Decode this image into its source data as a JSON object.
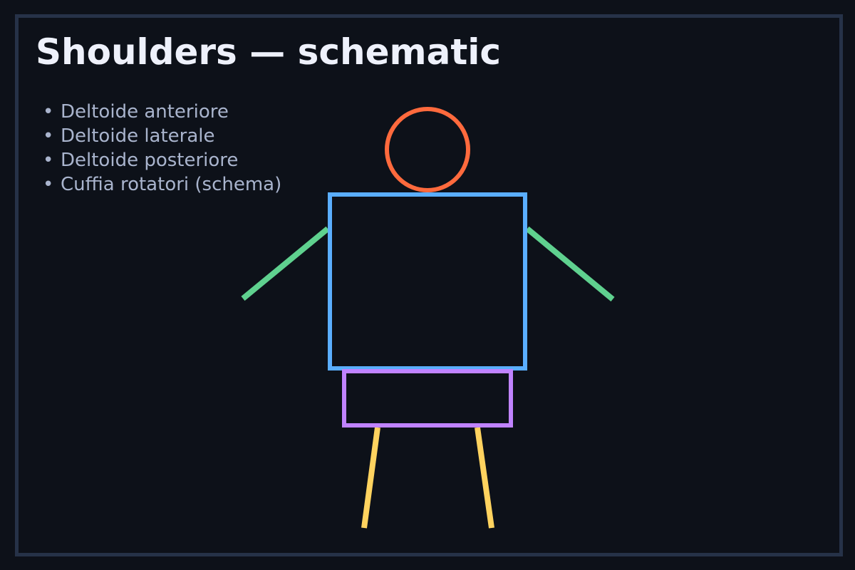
{
  "title": "Shoulders — schematic",
  "legend": {
    "bullet": "•",
    "items": [
      "Deltoide anteriore",
      "Deltoide laterale",
      "Deltoide posteriore",
      "Cuffia rotatori (schema)"
    ]
  },
  "colors": {
    "background": "#0d1119",
    "frame": "#263248",
    "title": "#eef1fb",
    "text": "#a9b4cd",
    "head": "#ff6a3d",
    "torso": "#5aaeff",
    "arms": "#5fd18f",
    "pelvis": "#c083ff",
    "legs": "#ffd35f"
  }
}
